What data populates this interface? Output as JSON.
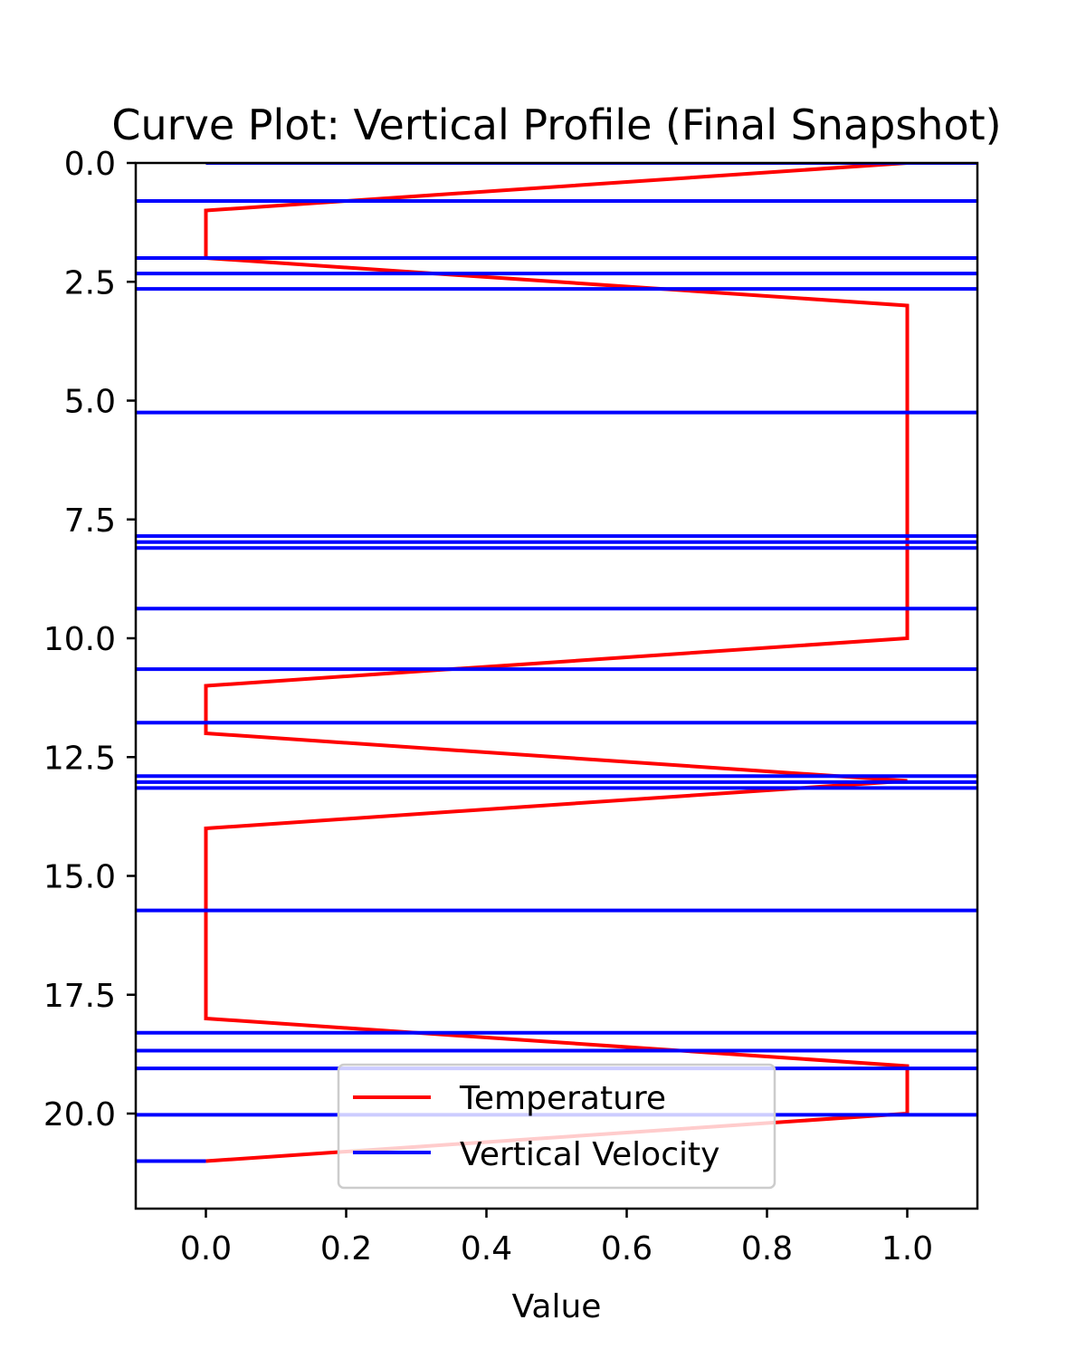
{
  "chart_data": {
    "type": "line",
    "title": "Curve Plot: Vertical Profile (Final Snapshot)",
    "xlabel": "Value",
    "ylabel": "",
    "xlim": [
      -0.1,
      1.1
    ],
    "ylim": [
      22.0,
      0.0
    ],
    "y_inverted": true,
    "grid": false,
    "legend_position": "bottom-center",
    "xticks": [
      "0.0",
      "0.2",
      "0.4",
      "0.6",
      "0.8",
      "1.0"
    ],
    "yticks": [
      "0.0",
      "2.5",
      "5.0",
      "7.5",
      "10.0",
      "12.5",
      "15.0",
      "17.5",
      "20.0"
    ],
    "series": [
      {
        "name": "Temperature",
        "color": "#ff0000",
        "points": [
          [
            1,
            0
          ],
          [
            0,
            1
          ],
          [
            0,
            2
          ],
          [
            1,
            3
          ],
          [
            1,
            4
          ],
          [
            1,
            5
          ],
          [
            1,
            6
          ],
          [
            1,
            7
          ],
          [
            1,
            8
          ],
          [
            1,
            9
          ],
          [
            1,
            10
          ],
          [
            0,
            11
          ],
          [
            0,
            12
          ],
          [
            1,
            13
          ],
          [
            0,
            14
          ],
          [
            0,
            15
          ],
          [
            0,
            16
          ],
          [
            0,
            17
          ],
          [
            0,
            18
          ],
          [
            1,
            19
          ],
          [
            1,
            20
          ],
          [
            0,
            21
          ]
        ]
      },
      {
        "name": "Vertical Velocity",
        "color": "#0000ff",
        "points": [
          [
            0,
            0
          ],
          [
            2000000000.0,
            0
          ],
          [
            -3000000000.0,
            2.0
          ],
          [
            3000000000.0,
            2.0
          ],
          [
            -3000000000.0,
            2.65
          ],
          [
            3000000000.0,
            2.65
          ],
          [
            -3000000000.0,
            7.85
          ],
          [
            3000000000.0,
            7.85
          ],
          [
            -3000000000.0,
            8.1
          ],
          [
            3000000000.0,
            8.1
          ],
          [
            -3000000000.0,
            10.65
          ],
          [
            3000000000.0,
            10.65
          ],
          [
            -3000000000.0,
            12.9
          ],
          [
            3000000000.0,
            12.9
          ],
          [
            -3000000000.0,
            13.15
          ],
          [
            3000000000.0,
            13.15
          ],
          [
            -3000000000.0,
            18.3
          ],
          [
            3000000000.0,
            18.3
          ],
          [
            -3000000000.0,
            19.05
          ],
          [
            3000000000.0,
            19.05
          ],
          [
            -3000000000.0,
            21.0
          ],
          [
            0,
            21.0
          ]
        ]
      }
    ]
  }
}
